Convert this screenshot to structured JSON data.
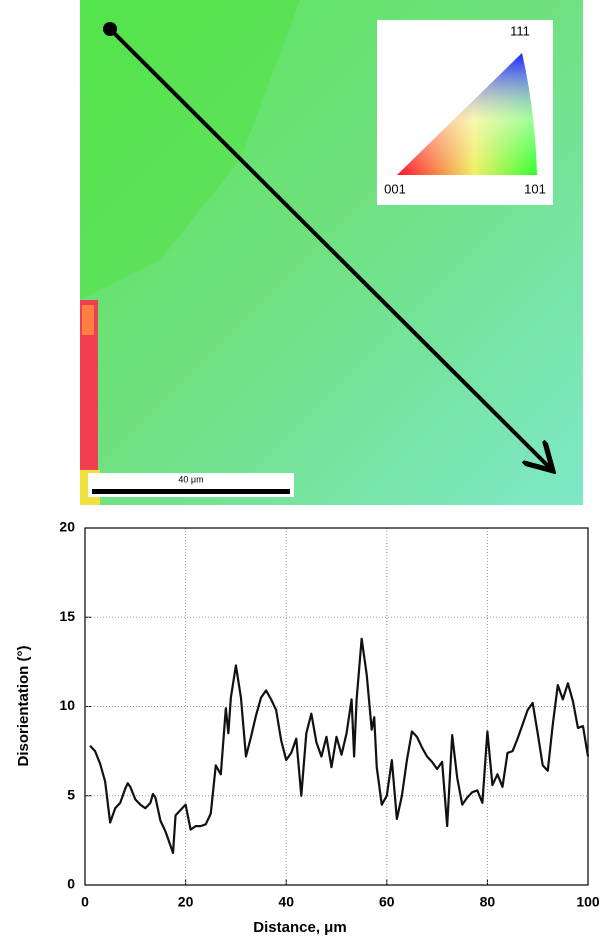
{
  "map": {
    "scale_label": "40 μm",
    "inset_labels": {
      "top": "111",
      "left": "001",
      "right": "101"
    }
  },
  "chart_data": {
    "type": "line",
    "x_label": "Distance, μm",
    "y_label": "Disorientation (°)",
    "x": [
      1,
      2,
      3,
      4,
      5,
      6,
      7,
      8,
      8.5,
      9,
      10,
      11,
      12,
      13,
      13.5,
      14,
      15,
      16,
      17,
      17.5,
      18,
      19,
      20,
      21,
      22,
      23,
      24,
      25,
      26,
      27,
      28,
      28.5,
      29,
      30,
      31,
      32,
      33,
      34,
      35,
      36,
      37,
      38,
      39,
      40,
      41,
      42,
      43,
      44,
      45,
      46,
      47,
      48,
      49,
      50,
      51,
      52,
      53,
      53.5,
      54,
      55,
      56,
      57,
      57.5,
      58,
      59,
      60,
      61,
      62,
      63,
      64,
      65,
      66,
      67,
      68,
      69,
      70,
      71,
      72,
      73,
      74,
      75,
      76,
      77,
      78,
      79,
      80,
      81,
      82,
      83,
      84,
      85,
      86,
      87,
      88,
      89,
      90,
      91,
      92,
      93,
      94,
      95,
      96,
      97,
      98,
      99,
      100
    ],
    "values": [
      7.8,
      7.5,
      6.8,
      5.8,
      3.5,
      4.3,
      4.6,
      5.4,
      5.7,
      5.5,
      4.8,
      4.5,
      4.3,
      4.6,
      5.1,
      4.9,
      3.6,
      3.0,
      2.2,
      1.8,
      3.9,
      4.2,
      4.5,
      3.1,
      3.3,
      3.3,
      3.4,
      4.0,
      6.7,
      6.2,
      9.9,
      8.5,
      10.5,
      12.3,
      10.5,
      7.2,
      8.3,
      9.5,
      10.5,
      10.9,
      10.4,
      9.8,
      8.1,
      7.0,
      7.4,
      8.2,
      5.0,
      8.5,
      9.6,
      8.0,
      7.2,
      8.3,
      6.6,
      8.3,
      7.3,
      8.5,
      10.4,
      7.2,
      10.4,
      13.8,
      11.8,
      8.7,
      9.4,
      6.6,
      4.5,
      5.0,
      7.0,
      3.7,
      5.0,
      7.0,
      8.6,
      8.3,
      7.7,
      7.2,
      6.9,
      6.5,
      6.9,
      3.3,
      8.4,
      6.0,
      4.5,
      4.9,
      5.2,
      5.3,
      4.6,
      8.6,
      5.6,
      6.2,
      5.5,
      7.4,
      7.5,
      8.2,
      9.0,
      9.8,
      10.2,
      8.5,
      6.7,
      6.4,
      9.0,
      11.2,
      10.4,
      11.3,
      10.3,
      8.8,
      8.9,
      7.2
    ],
    "color": "#111111",
    "xlim": [
      0,
      100
    ],
    "ylim": [
      0,
      20
    ],
    "xticks": [
      0,
      20,
      40,
      60,
      80,
      100
    ],
    "yticks": [
      0,
      5,
      10,
      15,
      20
    ],
    "grid": true
  }
}
